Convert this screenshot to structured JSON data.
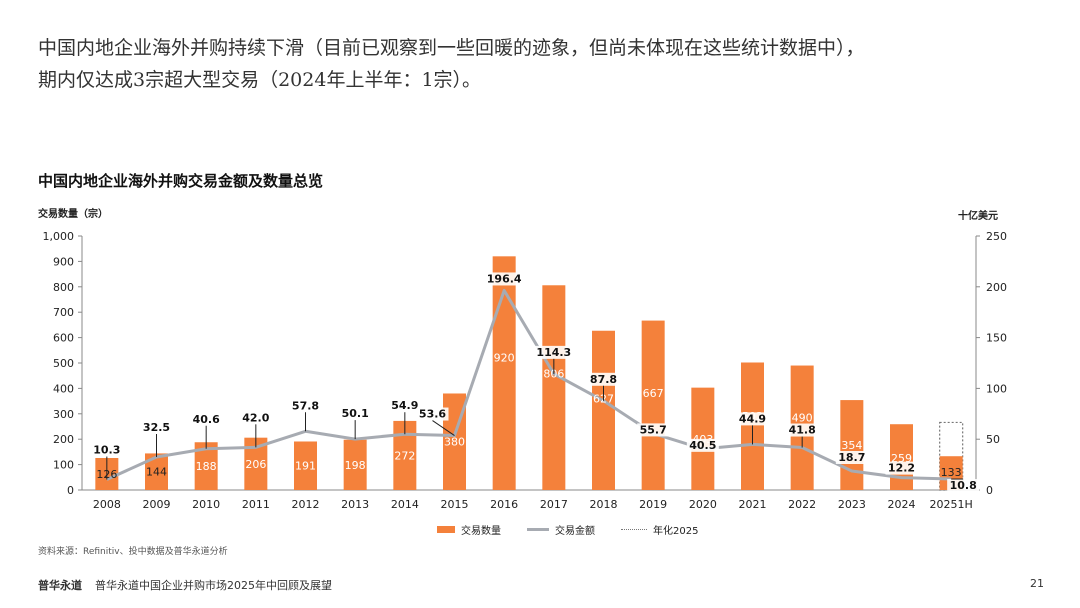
{
  "headline": {
    "line1": "中国内地企业海外并购持续下滑（目前已观察到一些回暖的迹象，但尚未体现在这些统计数据中），",
    "line2": "期内仅达成3宗超大型交易（2024年上半年：1宗）。"
  },
  "chart_data": {
    "type": "bar",
    "title": "中国内地企业海外并购交易金额及数量总览",
    "ylabel_left": "交易数量（宗）",
    "ylabel_right": "十亿美元",
    "categories": [
      "2008",
      "2009",
      "2010",
      "2011",
      "2012",
      "2013",
      "2014",
      "2015",
      "2016",
      "2017",
      "2018",
      "2019",
      "2020",
      "2021",
      "2022",
      "2023",
      "2024",
      "20251H"
    ],
    "ylim_left": [
      0,
      1000
    ],
    "yticks_left": [
      "0",
      "100",
      "200",
      "300",
      "400",
      "500",
      "600",
      "700",
      "800",
      "900",
      "1,000"
    ],
    "ylim_right": [
      0,
      250
    ],
    "yticks_right": [
      "0",
      "50",
      "100",
      "150",
      "200",
      "250"
    ],
    "series": [
      {
        "name": "交易数量",
        "type": "bar",
        "axis": "left",
        "values": [
          126,
          144,
          188,
          206,
          191,
          198,
          272,
          380,
          920,
          806,
          627,
          667,
          403,
          502,
          490,
          354,
          259,
          133
        ],
        "labels": [
          "126",
          "144",
          "188",
          "206",
          "191",
          "198",
          "272",
          "380",
          "920",
          "806",
          "627",
          "667",
          "403",
          "502",
          "490",
          "354",
          "259",
          "133"
        ]
      },
      {
        "name": "交易金额",
        "type": "line",
        "axis": "right",
        "values": [
          10.3,
          32.5,
          40.6,
          42.0,
          57.8,
          50.1,
          54.9,
          53.6,
          196.4,
          114.3,
          87.8,
          55.7,
          40.5,
          44.9,
          41.8,
          18.7,
          12.2,
          10.8
        ],
        "labels": [
          "10.3",
          "32.5",
          "40.6",
          "42.0",
          "57.8",
          "50.1",
          "54.9",
          "53.6",
          "196.4",
          "114.3",
          "87.8",
          "55.7",
          "40.5",
          "44.9",
          "41.8",
          "18.7",
          "12.2",
          "10.8"
        ]
      },
      {
        "name": "年化2025",
        "type": "bar-outline",
        "axis": "left",
        "category": "20251H",
        "value": 266
      }
    ],
    "colors": {
      "bar": "#F4813B",
      "line": "#A7ABB2",
      "annualized": "#777777"
    },
    "legend": [
      "交易数量",
      "交易金额",
      "年化2025"
    ]
  },
  "source": "资料来源：Refinitiv、投中数据及普华永道分析",
  "footer": {
    "brand": "普华永道",
    "report": "普华永道中国企业并购市场2025年中回顾及展望",
    "page": "21"
  }
}
